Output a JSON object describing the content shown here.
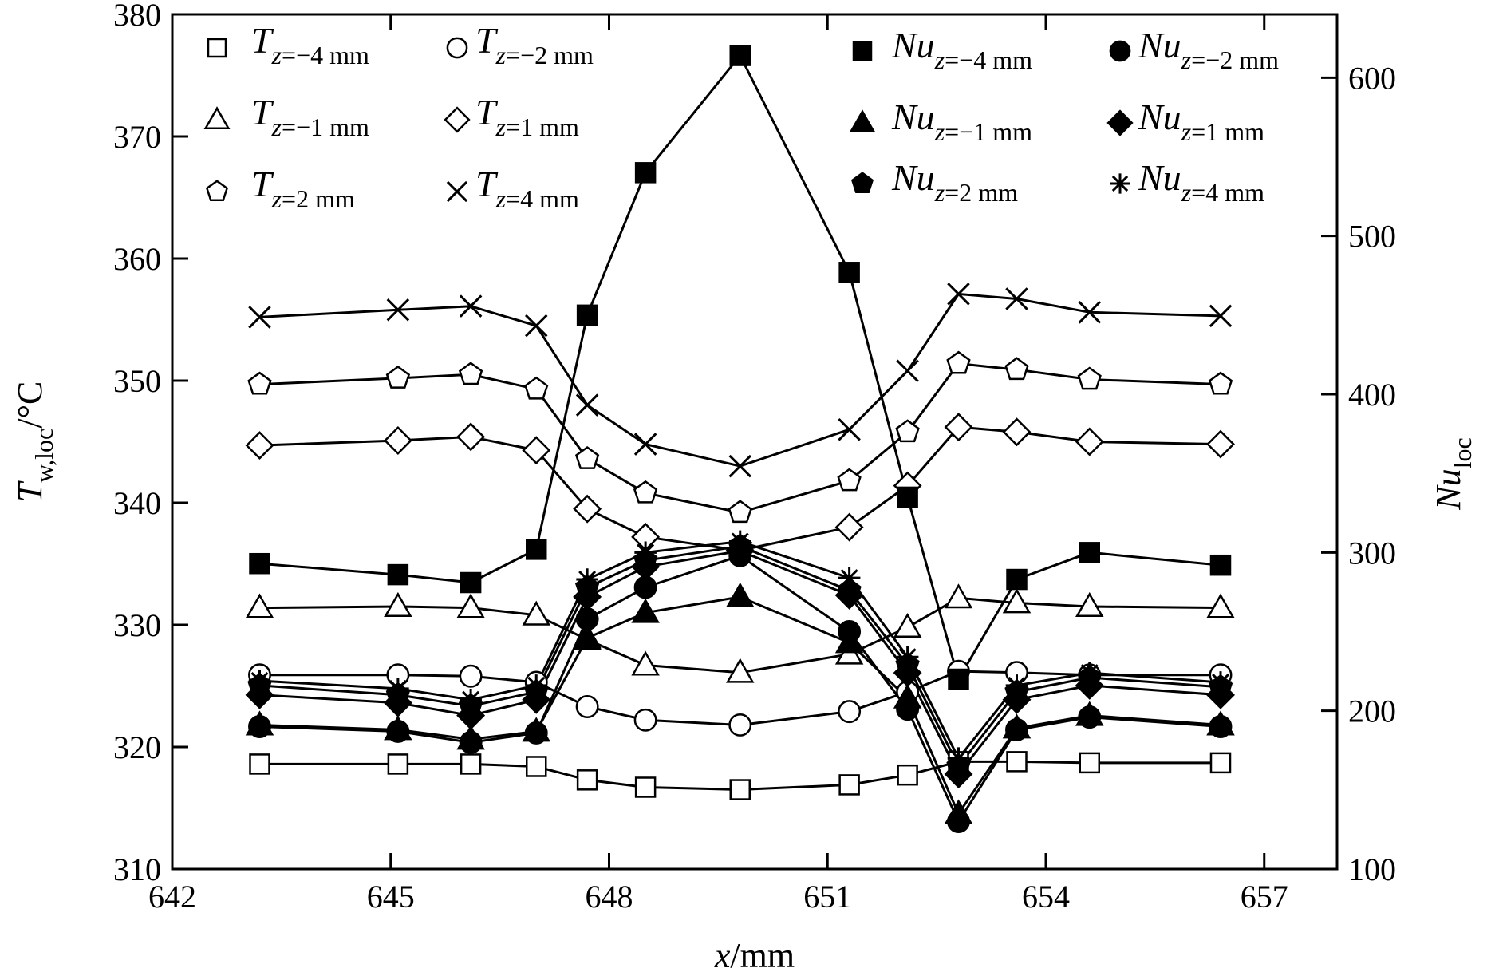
{
  "chart_data": {
    "type": "line",
    "xlabel": "x/mm",
    "ylabel_left": "T_w,loc/°C",
    "ylabel_right": "Nu_loc",
    "xlim": [
      642,
      658
    ],
    "ylim_left": [
      310,
      380
    ],
    "ylim_right": [
      100,
      640
    ],
    "xticks": [
      642,
      645,
      648,
      651,
      654,
      657
    ],
    "yticks_left": [
      310,
      320,
      330,
      340,
      350,
      360,
      370,
      380
    ],
    "yticks_right": [
      100,
      200,
      300,
      400,
      500,
      600
    ],
    "grid": false,
    "legend_left_position": "top-left",
    "legend_right_position": "top-right",
    "x": [
      643.2,
      645.1,
      646.1,
      647.0,
      647.7,
      648.5,
      649.8,
      651.3,
      652.1,
      652.8,
      653.6,
      654.6,
      656.4
    ],
    "series": [
      {
        "axis": "left",
        "marker": "square-open",
        "label_base": "T",
        "label_sub": "z=−4 mm",
        "values": [
          318.6,
          318.6,
          318.6,
          318.4,
          317.3,
          316.7,
          316.5,
          316.9,
          317.7,
          318.8,
          318.8,
          318.7,
          318.7
        ]
      },
      {
        "axis": "left",
        "marker": "circle-open",
        "label_base": "T",
        "label_sub": "z=−2 mm",
        "values": [
          325.9,
          325.9,
          325.8,
          325.3,
          323.3,
          322.2,
          321.8,
          322.9,
          324.5,
          326.2,
          326.1,
          325.9,
          325.9
        ]
      },
      {
        "axis": "left",
        "marker": "triangle-open",
        "label_base": "T",
        "label_sub": "z=−1 mm",
        "values": [
          331.4,
          331.5,
          331.4,
          330.8,
          328.8,
          326.7,
          326.1,
          327.6,
          329.8,
          332.2,
          331.8,
          331.5,
          331.4
        ]
      },
      {
        "axis": "left",
        "marker": "diamond-open",
        "label_base": "T",
        "label_sub": "z=1 mm",
        "values": [
          344.7,
          345.1,
          345.4,
          344.3,
          339.5,
          337.2,
          336.1,
          338.0,
          341.4,
          346.2,
          345.8,
          345.0,
          344.8
        ]
      },
      {
        "axis": "left",
        "marker": "pentagon-open",
        "label_base": "T",
        "label_sub": "z=2 mm",
        "values": [
          349.7,
          350.2,
          350.5,
          349.3,
          343.6,
          340.8,
          339.2,
          341.8,
          345.8,
          351.4,
          350.9,
          350.1,
          349.7
        ]
      },
      {
        "axis": "left",
        "marker": "x",
        "label_base": "T",
        "label_sub": "z=4 mm",
        "values": [
          355.2,
          355.8,
          356.1,
          354.5,
          348.0,
          344.8,
          343.0,
          346.0,
          350.8,
          357.1,
          356.7,
          355.6,
          355.3
        ]
      },
      {
        "axis": "right",
        "marker": "square-filled",
        "label_base": "Nu",
        "label_sub": "z=−4 mm",
        "values": [
          293,
          286,
          281,
          302,
          450,
          540,
          614,
          477,
          335,
          220,
          283,
          300,
          292
        ]
      },
      {
        "axis": "right",
        "marker": "circle-filled",
        "label_base": "Nu",
        "label_sub": "z=−2 mm",
        "values": [
          190,
          187,
          180,
          186,
          258,
          278,
          298,
          250,
          201,
          130,
          188,
          196,
          190
        ]
      },
      {
        "axis": "right",
        "marker": "triangle-filled",
        "label_base": "Nu",
        "label_sub": "z=−1 mm",
        "values": [
          191,
          188,
          182,
          187,
          246,
          262,
          272,
          243,
          208,
          135,
          189,
          197,
          191
        ]
      },
      {
        "axis": "right",
        "marker": "diamond-filled",
        "label_base": "Nu",
        "label_sub": "z=1 mm",
        "values": [
          210,
          205,
          197,
          207,
          272,
          291,
          301,
          273,
          224,
          160,
          207,
          216,
          210
        ]
      },
      {
        "axis": "right",
        "marker": "pentagon-filled",
        "label_base": "Nu",
        "label_sub": "z=2 mm",
        "values": [
          216,
          210,
          203,
          212,
          278,
          295,
          304,
          276,
          229,
          165,
          212,
          221,
          215
        ]
      },
      {
        "axis": "right",
        "marker": "asterisk",
        "label_base": "Nu",
        "label_sub": "z=4 mm",
        "values": [
          219,
          214,
          207,
          216,
          283,
          300,
          307,
          284,
          234,
          170,
          216,
          224,
          218
        ]
      }
    ]
  }
}
